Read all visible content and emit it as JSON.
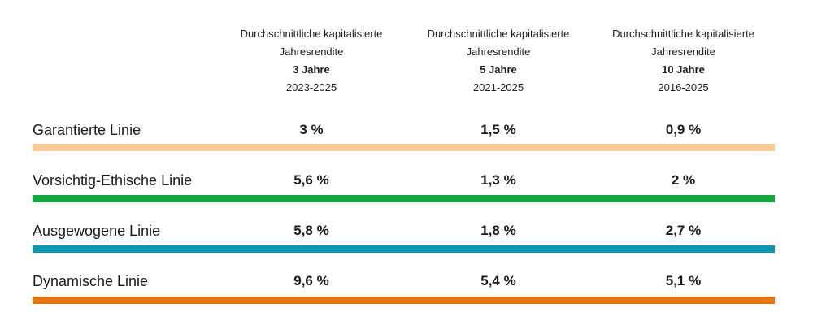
{
  "table": {
    "columns": [
      {
        "title_line1": "Durchschnittliche kapitalisierte",
        "title_line2": "Jahresrendite",
        "period": "3 Jahre",
        "years": "2023-2025"
      },
      {
        "title_line1": "Durchschnittliche kapitalisierte",
        "title_line2": "Jahresrendite",
        "period": "5 Jahre",
        "years": "2021-2025"
      },
      {
        "title_line1": "Durchschnittliche kapitalisierte",
        "title_line2": "Jahresrendite",
        "period": "10 Jahre",
        "years": "2016-2025"
      }
    ],
    "rows": [
      {
        "label": "Garantierte Linie",
        "values": [
          "3 %",
          "1,5 %",
          "0,9 %"
        ],
        "bar_color": "#FBCB96"
      },
      {
        "label": "Vorsichtig-Ethische Linie",
        "values": [
          "5,6 %",
          "1,3 %",
          "2 %"
        ],
        "bar_color": "#15A73E"
      },
      {
        "label": "Ausgewogene Linie",
        "values": [
          "5,8 %",
          "1,8 %",
          "2,7 %"
        ],
        "bar_color": "#0B96AF"
      },
      {
        "label": "Dynamische Linie",
        "values": [
          "9,6 %",
          "5,4 %",
          "5,1 %"
        ],
        "bar_color": "#E2730D"
      }
    ]
  },
  "chart_data": {
    "type": "table",
    "title": "",
    "row_labels": [
      "Garantierte Linie",
      "Vorsichtig-Ethische Linie",
      "Ausgewogene Linie",
      "Dynamische Linie"
    ],
    "row_colors": [
      "#FBCB96",
      "#15A73E",
      "#0B96AF",
      "#E2730D"
    ],
    "columns": [
      {
        "header": "Durchschnittliche kapitalisierte Jahresrendite",
        "period": "3 Jahre",
        "years": "2023-2025",
        "values_pct": [
          3,
          5.6,
          5.8,
          9.6
        ]
      },
      {
        "header": "Durchschnittliche kapitalisierte Jahresrendite",
        "period": "5 Jahre",
        "years": "2021-2025",
        "values_pct": [
          1.5,
          1.3,
          1.8,
          5.4
        ]
      },
      {
        "header": "Durchschnittliche kapitalisierte Jahresrendite",
        "period": "10 Jahre",
        "years": "2016-2025",
        "values_pct": [
          0.9,
          2,
          2.7,
          5.1
        ]
      }
    ]
  }
}
